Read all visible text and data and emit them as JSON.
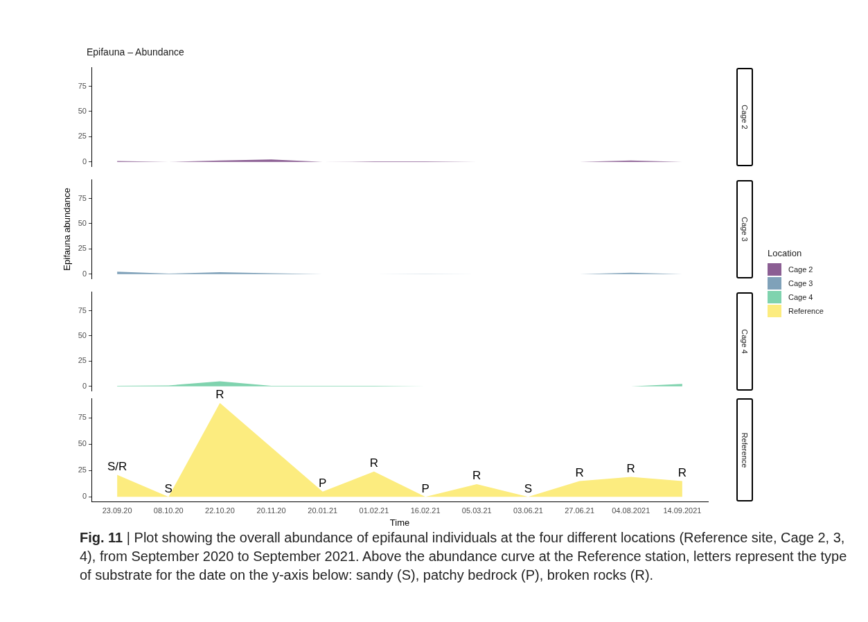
{
  "chart_data": [
    {
      "type": "area",
      "title": "Epifauna – Abundance",
      "legend_title": "Location",
      "legend": "right",
      "tick_labels": "y",
      "categories": [
        "23.09.20",
        "08.10.20",
        "22.10.20",
        "20.11.20",
        "20.01.21",
        "01.02.21",
        "16.02.21",
        "05.03.21",
        "03.06.21",
        "27.06.21",
        "04.08.2021",
        "14.09.2021"
      ],
      "series": [
        {
          "name": "Cage 2",
          "color": "#8b5e93",
          "values": [
            1,
            0,
            1.5,
            2.5,
            0,
            0.5,
            0.5,
            0,
            0,
            0,
            1.5,
            0
          ]
        }
      ],
      "ylim": [
        -4.5,
        93.5
      ],
      "yticks": [
        0,
        25,
        50,
        75
      ]
    },
    {
      "type": "area",
      "tick_labels": "y",
      "categories": [
        "23.09.20",
        "08.10.20",
        "22.10.20",
        "20.11.20",
        "20.01.21",
        "01.02.21",
        "16.02.21",
        "05.03.21",
        "03.06.21",
        "27.06.21",
        "04.08.2021",
        "14.09.2021"
      ],
      "ylabel": "Epifauna abundance",
      "series": [
        {
          "name": "Cage 3",
          "color": "#7fa1b9",
          "values": [
            2.5,
            0.5,
            2,
            1,
            0,
            0,
            0.3,
            0,
            0,
            0,
            1.5,
            0
          ]
        }
      ],
      "ylim": [
        -4.5,
        93.5
      ],
      "yticks": [
        0,
        25,
        50,
        75
      ]
    },
    {
      "type": "area",
      "tick_labels": "y",
      "categories": [
        "23.09.20",
        "08.10.20",
        "22.10.20",
        "20.11.20",
        "20.01.21",
        "01.02.21",
        "16.02.21",
        "05.03.21",
        "03.06.21",
        "27.06.21",
        "04.08.2021",
        "14.09.2021"
      ],
      "series": [
        {
          "name": "Cage 4",
          "color": "#7fd3ae",
          "values": [
            0.5,
            1,
            5,
            0.5,
            0.5,
            0.5,
            0,
            0,
            0,
            0,
            0,
            2.5
          ]
        }
      ],
      "ylim": [
        -4.5,
        93.5
      ],
      "yticks": [
        0,
        25,
        50,
        75
      ]
    },
    {
      "type": "area",
      "xlabel": "Time",
      "categories": [
        "23.09.20",
        "08.10.20",
        "22.10.20",
        "20.11.20",
        "20.01.21",
        "01.02.21",
        "16.02.21",
        "05.03.21",
        "03.06.21",
        "27.06.21",
        "04.08.2021",
        "14.09.2021"
      ],
      "series": [
        {
          "name": "Reference",
          "color": "#fcec7f",
          "values": [
            21,
            0,
            89,
            47,
            5,
            24,
            0,
            12,
            0,
            15,
            19,
            15
          ]
        }
      ],
      "ylim": [
        -4.5,
        93.5
      ],
      "yticks": [
        0,
        25,
        50,
        75
      ],
      "annotations": [
        {
          "text": "S/R",
          "x": "23.09.20",
          "y": 21
        },
        {
          "text": "S",
          "x": "08.10.20",
          "y": 0
        },
        {
          "text": "R",
          "x": "22.10.20",
          "y": 89
        },
        {
          "text": "P",
          "x": "20.01.21",
          "y": 5
        },
        {
          "text": "R",
          "x": "01.02.21",
          "y": 24
        },
        {
          "text": "P",
          "x": "16.02.21",
          "y": 0
        },
        {
          "text": "R",
          "x": "05.03.21",
          "y": 12
        },
        {
          "text": "S",
          "x": "03.06.21",
          "y": 0
        },
        {
          "text": "R",
          "x": "27.06.21",
          "y": 15
        },
        {
          "text": "R",
          "x": "04.08.2021",
          "y": 19
        },
        {
          "text": "R",
          "x": "14.09.2021",
          "y": 15
        },
        "Fig. 11 | Plot showing the overall abundance of epifaunal individuals at the four different locations (Reference site, Cage 2, 3, 4), from September 2020 to September 2021. Above the abundance curve at the Reference station, letters represent the type of substrate for the date on the y-axis below: sandy (S), patchy bedrock (P), broken rocks (R)."
      ]
    }
  ]
}
